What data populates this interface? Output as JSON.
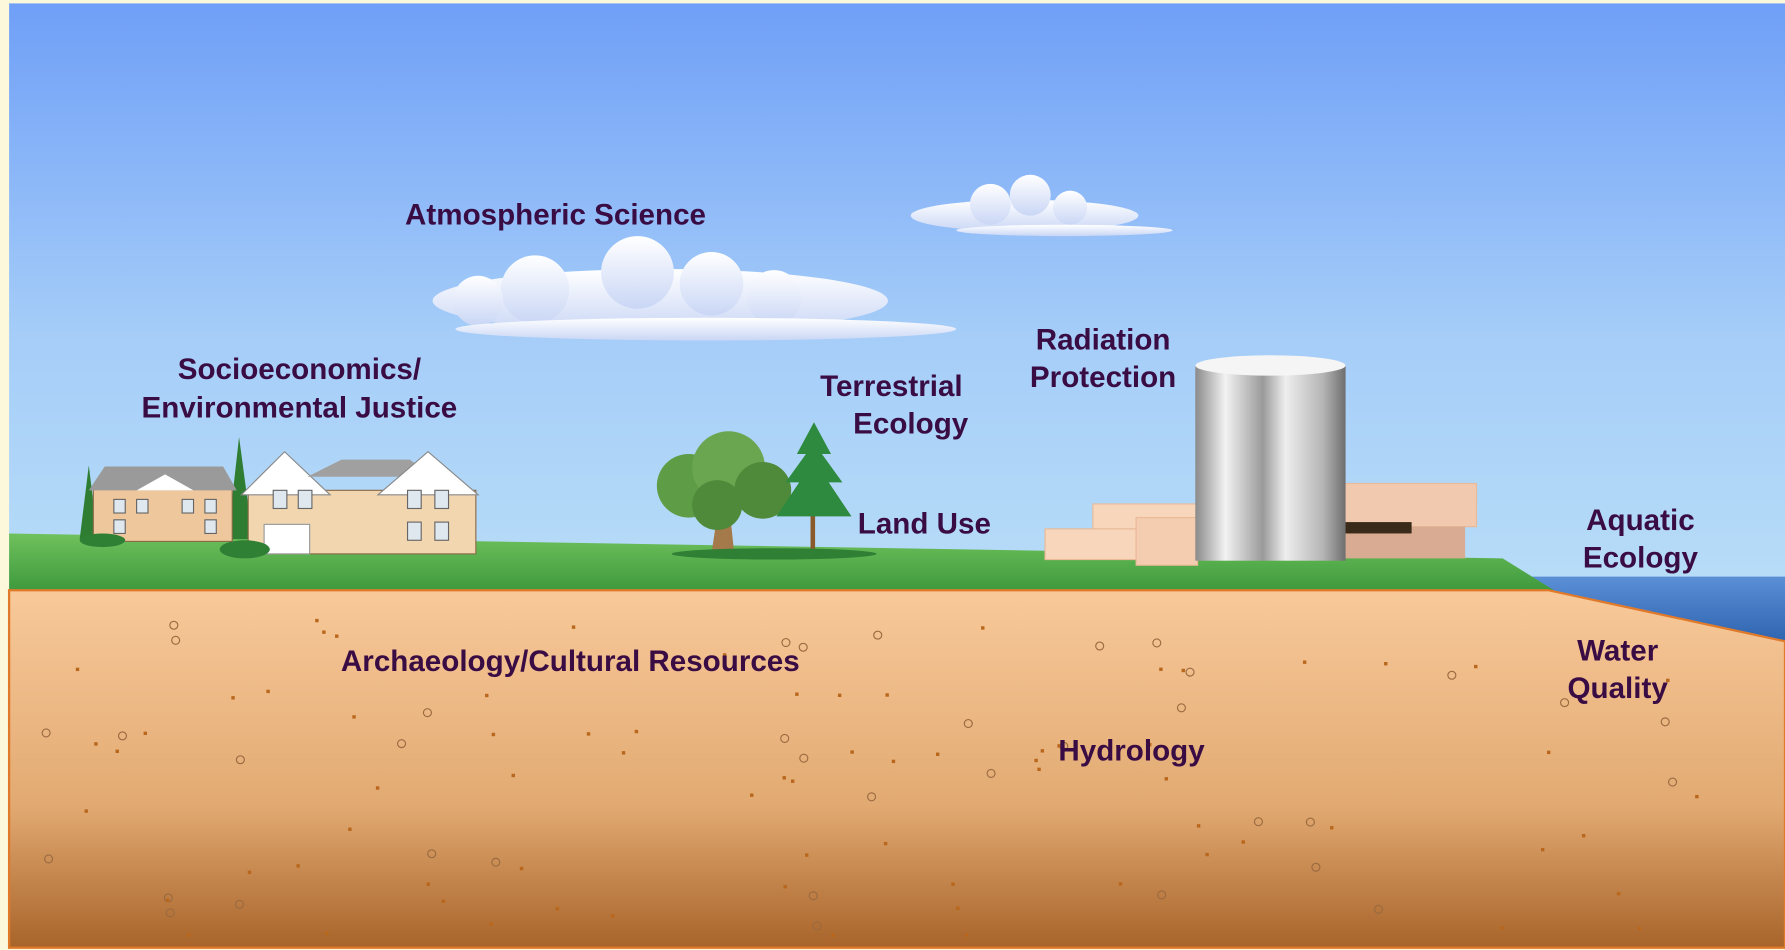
{
  "labels": {
    "atmospheric_science": "Atmospheric Science",
    "socioeconomics": [
      "Socioeconomics/",
      "Environmental Justice"
    ],
    "terrestrial_ecology": [
      "Terrestrial",
      "Ecology"
    ],
    "radiation_protection": [
      "Radiation",
      "Protection"
    ],
    "land_use": "Land Use",
    "aquatic_ecology": [
      "Aquatic",
      "Ecology"
    ],
    "water_quality": [
      "Water",
      "Quality"
    ],
    "archaeology": "Archaeology/Cultural Resources",
    "hydrology": "Hydrology"
  }
}
